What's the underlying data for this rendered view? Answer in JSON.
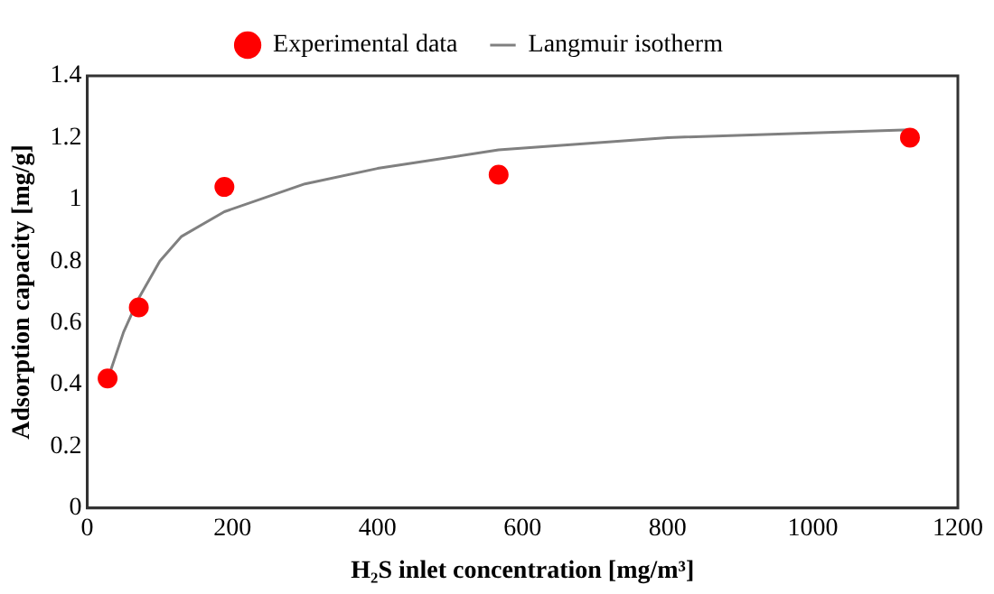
{
  "chart_data": {
    "type": "scatter",
    "xlabel": "H₂S inlet concentration [mg/m³]",
    "ylabel": "Adsorption capacity [mg/g]",
    "xlim": [
      0,
      1200
    ],
    "xticks": [
      0,
      200,
      400,
      600,
      800,
      1000,
      1200
    ],
    "ylim": [
      0,
      1.4
    ],
    "yticks": [
      0,
      0.2,
      0.4,
      0.6,
      0.8,
      1,
      1.2,
      1.4
    ],
    "grid": false,
    "legend": "top",
    "series": [
      {
        "name": "Experimental data",
        "marker": "circle",
        "color": "#ff0000",
        "x": [
          28,
          71,
          189,
          567,
          1134
        ],
        "values": [
          0.42,
          0.65,
          1.04,
          1.08,
          1.2
        ]
      },
      {
        "name": "Langmuir isotherm",
        "type": "line",
        "marker": "none",
        "line_style": "solid",
        "color": "#808080",
        "x": [
          30,
          50,
          71,
          100,
          130,
          189,
          300,
          400,
          567,
          800,
          1000,
          1134
        ],
        "values": [
          0.43,
          0.57,
          0.68,
          0.8,
          0.88,
          0.96,
          1.05,
          1.1,
          1.16,
          1.2,
          1.215,
          1.225
        ]
      }
    ]
  }
}
